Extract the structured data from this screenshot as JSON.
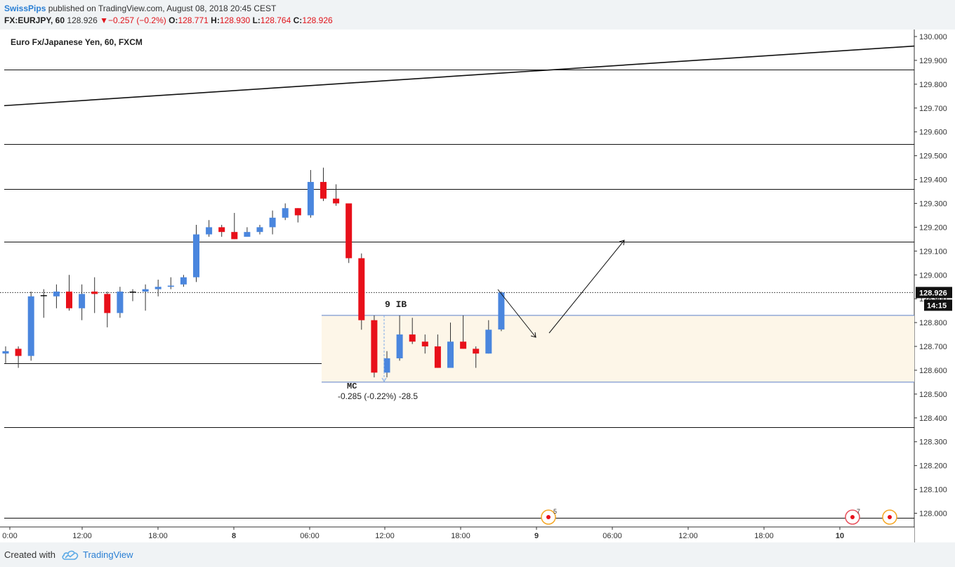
{
  "header": {
    "publisher": "SwissPips",
    "published_text": " published on TradingView.com, August 08, 2018 20:45 CEST",
    "symbol": "FX:EURJPY, 60",
    "last": "128.926",
    "change_arrow": "▼",
    "change": "−0.257 (−0.2%)",
    "open_label": "O:",
    "open": "128.771",
    "high_label": "H:",
    "high": "128.930",
    "low_label": "L:",
    "low": "128.764",
    "close_label": "C:",
    "close": "128.926"
  },
  "footer": {
    "created_with": "Created with",
    "brand": "TradingView",
    "logo_icon": "tradingview-cloud-icon"
  },
  "colors": {
    "up": "#4a86de",
    "down": "#e8101a",
    "zone_fill": "#fdf6e8",
    "zone_border": "#5b7fc8",
    "brand": "#2a7fd4",
    "last_label_bg": "#111111"
  },
  "chart_data": {
    "type": "candlestick",
    "title": "Euro Fx/Japanese Yen, 60, FXCM",
    "ylim": [
      127.93,
      130.03
    ],
    "y_ticks": [
      "130.000",
      "129.900",
      "129.800",
      "129.700",
      "129.600",
      "129.500",
      "129.400",
      "129.300",
      "129.200",
      "129.100",
      "129.000",
      "128.900",
      "128.800",
      "128.700",
      "128.600",
      "128.500",
      "128.400",
      "128.300",
      "128.200",
      "128.100",
      "128.000"
    ],
    "x_ticks": [
      "0:00",
      "12:00",
      "18:00",
      "8",
      "06:00",
      "12:00",
      "18:00",
      "9",
      "06:00",
      "12:00",
      "18:00",
      "10"
    ],
    "candles": [
      {
        "o": 128.67,
        "h": 128.7,
        "l": 128.63,
        "c": 128.68
      },
      {
        "o": 128.69,
        "h": 128.7,
        "l": 128.61,
        "c": 128.66
      },
      {
        "o": 128.66,
        "h": 128.93,
        "l": 128.64,
        "c": 128.91
      },
      {
        "o": 128.915,
        "h": 128.94,
        "l": 128.82,
        "c": 128.915
      },
      {
        "o": 128.91,
        "h": 128.96,
        "l": 128.86,
        "c": 128.93
      },
      {
        "o": 128.93,
        "h": 129.0,
        "l": 128.85,
        "c": 128.86
      },
      {
        "o": 128.86,
        "h": 128.96,
        "l": 128.81,
        "c": 128.92
      },
      {
        "o": 128.93,
        "h": 128.99,
        "l": 128.84,
        "c": 128.92
      },
      {
        "o": 128.92,
        "h": 128.93,
        "l": 128.78,
        "c": 128.84
      },
      {
        "o": 128.84,
        "h": 128.95,
        "l": 128.82,
        "c": 128.93
      },
      {
        "o": 128.93,
        "h": 128.94,
        "l": 128.89,
        "c": 128.93
      },
      {
        "o": 128.93,
        "h": 128.96,
        "l": 128.85,
        "c": 128.94
      },
      {
        "o": 128.94,
        "h": 128.98,
        "l": 128.91,
        "c": 128.95
      },
      {
        "o": 128.95,
        "h": 128.99,
        "l": 128.94,
        "c": 128.955
      },
      {
        "o": 128.96,
        "h": 129.0,
        "l": 128.95,
        "c": 128.99
      },
      {
        "o": 128.99,
        "h": 129.21,
        "l": 128.97,
        "c": 129.17
      },
      {
        "o": 129.17,
        "h": 129.23,
        "l": 129.16,
        "c": 129.2
      },
      {
        "o": 129.2,
        "h": 129.21,
        "l": 129.16,
        "c": 129.18
      },
      {
        "o": 129.18,
        "h": 129.26,
        "l": 129.15,
        "c": 129.15
      },
      {
        "o": 129.16,
        "h": 129.2,
        "l": 129.16,
        "c": 129.18
      },
      {
        "o": 129.18,
        "h": 129.21,
        "l": 129.17,
        "c": 129.2
      },
      {
        "o": 129.2,
        "h": 129.27,
        "l": 129.17,
        "c": 129.24
      },
      {
        "o": 129.24,
        "h": 129.3,
        "l": 129.23,
        "c": 129.28
      },
      {
        "o": 129.28,
        "h": 129.28,
        "l": 129.22,
        "c": 129.25
      },
      {
        "o": 129.25,
        "h": 129.44,
        "l": 129.24,
        "c": 129.39
      },
      {
        "o": 129.39,
        "h": 129.45,
        "l": 129.31,
        "c": 129.32
      },
      {
        "o": 129.32,
        "h": 129.38,
        "l": 129.29,
        "c": 129.3
      },
      {
        "o": 129.3,
        "h": 129.3,
        "l": 129.05,
        "c": 129.07
      },
      {
        "o": 129.07,
        "h": 129.09,
        "l": 128.77,
        "c": 128.81
      },
      {
        "o": 128.81,
        "h": 128.83,
        "l": 128.57,
        "c": 128.59
      },
      {
        "o": 128.59,
        "h": 128.68,
        "l": 128.57,
        "c": 128.65
      },
      {
        "o": 128.65,
        "h": 128.83,
        "l": 128.64,
        "c": 128.75
      },
      {
        "o": 128.75,
        "h": 128.82,
        "l": 128.71,
        "c": 128.72
      },
      {
        "o": 128.72,
        "h": 128.75,
        "l": 128.67,
        "c": 128.7
      },
      {
        "o": 128.7,
        "h": 128.75,
        "l": 128.61,
        "c": 128.61
      },
      {
        "o": 128.61,
        "h": 128.8,
        "l": 128.61,
        "c": 128.72
      },
      {
        "o": 128.72,
        "h": 128.83,
        "l": 128.69,
        "c": 128.69
      },
      {
        "o": 128.69,
        "h": 128.7,
        "l": 128.61,
        "c": 128.67
      },
      {
        "o": 128.67,
        "h": 128.81,
        "l": 128.67,
        "c": 128.77
      },
      {
        "o": 128.771,
        "h": 128.93,
        "l": 128.764,
        "c": 128.926
      }
    ],
    "horizontal_levels": [
      129.86,
      129.55,
      129.36,
      129.14,
      128.63,
      128.36,
      127.98
    ],
    "trendline": {
      "from_price": 129.71,
      "to_price": 129.96
    },
    "last_price_label": "128.926",
    "countdown_label": "14:15",
    "zone": {
      "top": 128.83,
      "bottom": 128.55
    },
    "annotations": {
      "zone_label": "9 IB",
      "candle_label": "MC",
      "measure_label": "-0.285 (-0.22%) -28.5"
    },
    "events": [
      "5",
      "7"
    ]
  }
}
